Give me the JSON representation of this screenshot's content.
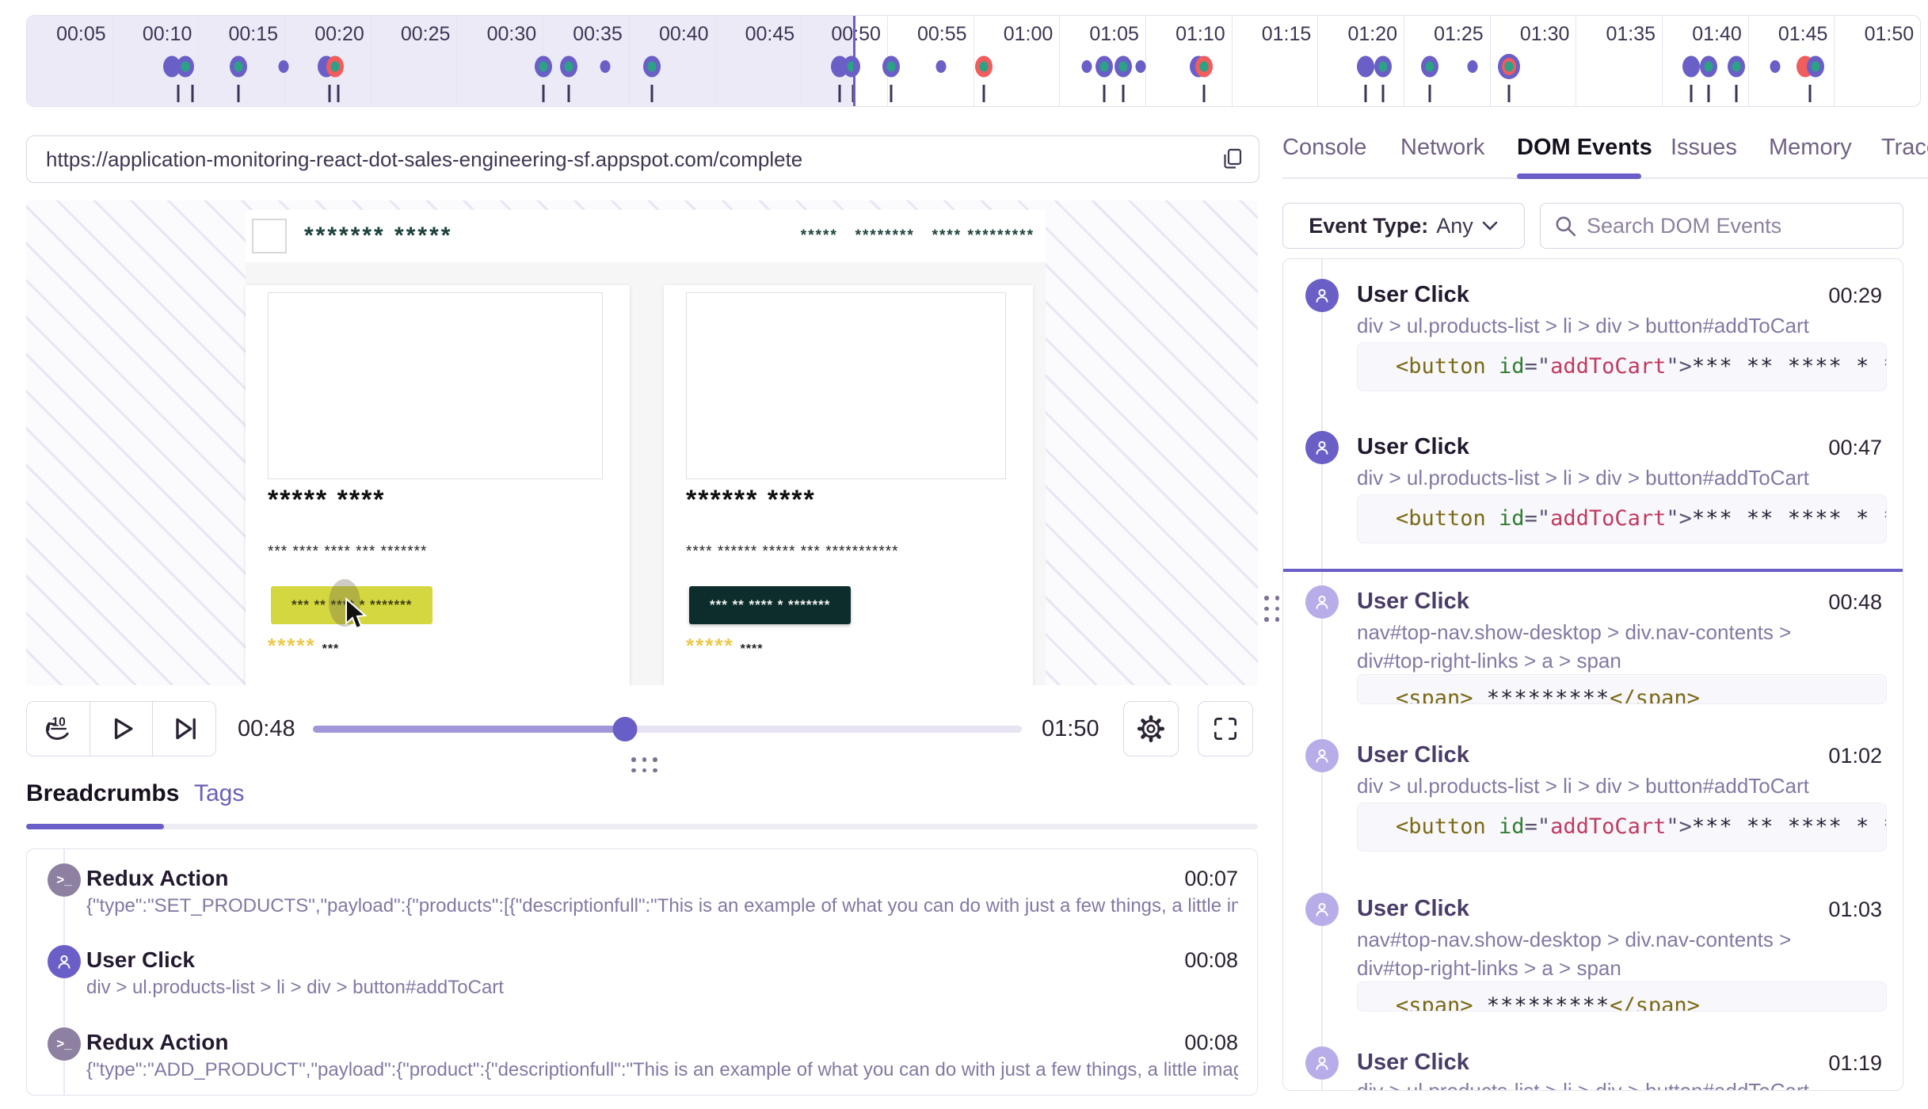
{
  "timeline": {
    "duration_seconds": 110,
    "current_time_seconds": 48,
    "labels": [
      "00:05",
      "00:10",
      "00:15",
      "00:20",
      "00:25",
      "00:30",
      "00:35",
      "00:40",
      "00:45",
      "00:50",
      "00:55",
      "01:00",
      "01:05",
      "01:10",
      "01:15",
      "01:20",
      "01:25",
      "01:30",
      "01:35",
      "01:40",
      "01:45",
      "01:50"
    ],
    "markers": [
      {
        "t": 8.4,
        "type": "p"
      },
      {
        "t": 9.2,
        "type": "pg"
      },
      {
        "t": 12.3,
        "type": "pg"
      },
      {
        "t": 14.9,
        "type": "sm"
      },
      {
        "t": 17.4,
        "type": "p"
      },
      {
        "t": 17.9,
        "type": "rg"
      },
      {
        "t": 30.0,
        "type": "pg"
      },
      {
        "t": 31.5,
        "type": "pg"
      },
      {
        "t": 33.6,
        "type": "sm"
      },
      {
        "t": 36.3,
        "type": "pg"
      },
      {
        "t": 47.2,
        "type": "p"
      },
      {
        "t": 47.9,
        "type": "pg"
      },
      {
        "t": 50.2,
        "type": "pg"
      },
      {
        "t": 53.1,
        "type": "sm"
      },
      {
        "t": 55.6,
        "type": "rg"
      },
      {
        "t": 61.6,
        "type": "sm"
      },
      {
        "t": 62.6,
        "type": "pg"
      },
      {
        "t": 63.7,
        "type": "pg"
      },
      {
        "t": 64.7,
        "type": "sm"
      },
      {
        "t": 68.4,
        "type": "prg"
      },
      {
        "t": 77.8,
        "type": "p"
      },
      {
        "t": 78.8,
        "type": "pg"
      },
      {
        "t": 81.5,
        "type": "pg"
      },
      {
        "t": 84.0,
        "type": "sm"
      },
      {
        "t": 86.1,
        "type": "bull"
      },
      {
        "t": 96.7,
        "type": "p"
      },
      {
        "t": 97.7,
        "type": "pg"
      },
      {
        "t": 99.3,
        "type": "pg"
      },
      {
        "t": 101.6,
        "type": "sm"
      },
      {
        "t": 103.6,
        "type": "gr"
      }
    ],
    "ticks": [
      8.8,
      9.6,
      12.3,
      17.6,
      18.1,
      30.0,
      31.5,
      36.3,
      47.2,
      48.0,
      50.2,
      55.6,
      62.6,
      63.7,
      68.4,
      77.8,
      78.8,
      81.5,
      86.1,
      96.7,
      97.7,
      99.3,
      103.6
    ],
    "colors": {
      "purple": "#6A5FC7",
      "green": "#2BA185",
      "red": "#F15C5D"
    }
  },
  "url_bar": {
    "url": "https://application-monitoring-react-dot-sales-engineering-sf.appspot.com/complete"
  },
  "player": {
    "page": {
      "brand_masked": "******* *****",
      "nav_links_masked": "*****   ********   **** *********",
      "products": [
        {
          "title_masked": "***** ****",
          "desc_masked": "*** **** **** *** *******",
          "button_masked": "*** ** **** * *******",
          "stars_masked": "*****",
          "count_masked": "***",
          "button_style": "yellow"
        },
        {
          "title_masked": "****** ****",
          "desc_masked": "**** ****** ***** *** ***********",
          "button_masked": "*** ** **** * *******",
          "stars_masked": "*****",
          "count_masked": "****",
          "button_style": "dark"
        }
      ]
    },
    "controls": {
      "current_time": "00:48",
      "duration": "01:50",
      "progress_pct": 44
    }
  },
  "left_tabs": [
    {
      "label": "Breadcrumbs",
      "active": true
    },
    {
      "label": "Tags",
      "active": false
    }
  ],
  "breadcrumbs": [
    {
      "icon": "terminal",
      "title": "Redux Action",
      "time": "00:07",
      "description": "{\"type\":\"SET_PRODUCTS\",\"payload\":{\"products\":[{\"descriptionfull\":\"This is an example of what you can do with just a few things, a little im…"
    },
    {
      "icon": "user",
      "title": "User Click",
      "time": "00:08",
      "description": "div > ul.products-list > li > div > button#addToCart"
    },
    {
      "icon": "terminal",
      "title": "Redux Action",
      "time": "00:08",
      "description": "{\"type\":\"ADD_PRODUCT\",\"payload\":{\"product\":{\"descriptionfull\":\"This is an example of what you can do with just a few things, a little imagi…"
    }
  ],
  "right_panel": {
    "tabs": [
      {
        "label": "Console",
        "active": false
      },
      {
        "label": "Network",
        "active": false
      },
      {
        "label": "DOM Events",
        "active": true
      },
      {
        "label": "Issues",
        "active": false
      },
      {
        "label": "Memory",
        "active": false
      },
      {
        "label": "Trace",
        "active": false
      }
    ],
    "filter": {
      "label": "Event Type:",
      "value": "Any"
    },
    "search_placeholder": "Search DOM Events",
    "events": [
      {
        "title": "User Click",
        "time": "00:29",
        "state": "past",
        "selector": "div > ul.products-list > li > div > button#addToCart",
        "code": [
          [
            "tag",
            "<button "
          ],
          [
            "attr",
            "id"
          ],
          [
            "pun",
            "=\""
          ],
          [
            "str",
            "addToCart"
          ],
          [
            "pun",
            "\">"
          ],
          [
            "txt",
            "*** ** **** * ****"
          ]
        ]
      },
      {
        "title": "User Click",
        "time": "00:47",
        "state": "past",
        "selector": "div > ul.products-list > li > div > button#addToCart",
        "code": [
          [
            "tag",
            "<button "
          ],
          [
            "attr",
            "id"
          ],
          [
            "pun",
            "=\""
          ],
          [
            "str",
            "addToCart"
          ],
          [
            "pun",
            "\">"
          ],
          [
            "txt",
            "*** ** **** * ****"
          ]
        ]
      },
      {
        "title": "User Click",
        "time": "00:48",
        "state": "future",
        "current": true,
        "selector": "nav#top-nav.show-desktop > div.nav-contents > div#top-right-links > a > span",
        "code": [
          [
            "tag",
            "<span>"
          ],
          [
            "txt",
            " *********"
          ],
          [
            "tag",
            "</span>"
          ]
        ]
      },
      {
        "title": "User Click",
        "time": "01:02",
        "state": "future",
        "selector": "div > ul.products-list > li > div > button#addToCart",
        "code": [
          [
            "tag",
            "<button "
          ],
          [
            "attr",
            "id"
          ],
          [
            "pun",
            "=\""
          ],
          [
            "str",
            "addToCart"
          ],
          [
            "pun",
            "\">"
          ],
          [
            "txt",
            "*** ** **** * ****"
          ]
        ]
      },
      {
        "title": "User Click",
        "time": "01:03",
        "state": "future",
        "selector": "nav#top-nav.show-desktop > div.nav-contents > div#top-right-links > a > span",
        "code": [
          [
            "tag",
            "<span>"
          ],
          [
            "txt",
            " *********"
          ],
          [
            "tag",
            "</span>"
          ]
        ]
      },
      {
        "title": "User Click",
        "time": "01:19",
        "state": "future",
        "selector": "div > ul.products-list > li > div > button#addToCart",
        "code": null
      }
    ]
  }
}
